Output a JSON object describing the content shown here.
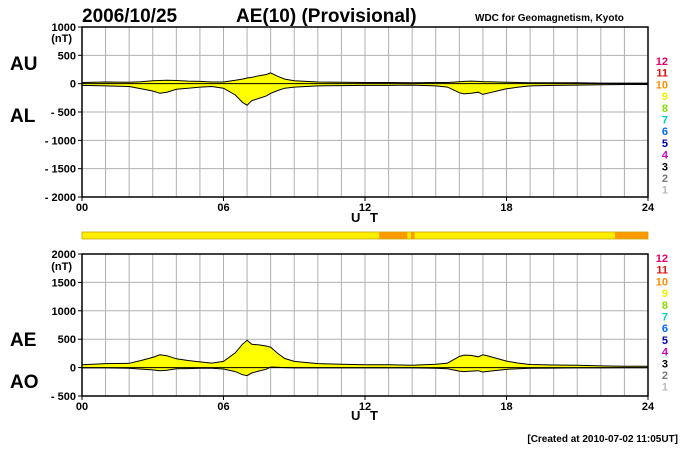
{
  "header": {
    "date": "2006/10/25",
    "title": "AE(10) (Provisional)",
    "credit": "WDC for Geomagnetism, Kyoto"
  },
  "footer": {
    "created": "[Created at 2010-07-02 11:05UT]"
  },
  "colors": {
    "fill": "#ffff00",
    "trace": "#000000",
    "grid": "#b0b0b0",
    "station_bar_normal": "#ffee00",
    "station_bar_reduced": "#ff9900"
  },
  "station_legend": [
    {
      "label": "12",
      "color": "#e0006a"
    },
    {
      "label": "11",
      "color": "#e01010"
    },
    {
      "label": "10",
      "color": "#ff8c00"
    },
    {
      "label": "9",
      "color": "#f0f000"
    },
    {
      "label": "8",
      "color": "#88dd00"
    },
    {
      "label": "7",
      "color": "#00cccc"
    },
    {
      "label": "6",
      "color": "#0066ff"
    },
    {
      "label": "5",
      "color": "#0000aa"
    },
    {
      "label": "4",
      "color": "#cc00cc"
    },
    {
      "label": "3",
      "color": "#000000"
    },
    {
      "label": "2",
      "color": "#777777"
    },
    {
      "label": "1",
      "color": "#bbbbbb"
    }
  ],
  "station_count_bar": {
    "xlim": [
      0,
      24
    ],
    "segments": [
      {
        "start": 0,
        "end": 12.6,
        "stations": 9
      },
      {
        "start": 12.6,
        "end": 13.8,
        "stations": 10
      },
      {
        "start": 13.8,
        "end": 13.95,
        "stations": 9
      },
      {
        "start": 13.95,
        "end": 14.1,
        "stations": 10
      },
      {
        "start": 14.1,
        "end": 22.6,
        "stations": 9
      },
      {
        "start": 22.6,
        "end": 24,
        "stations": 10
      }
    ]
  },
  "chart_data": [
    {
      "type": "area",
      "panel": "AU/AL",
      "title": "AU / AL",
      "series_labels": [
        "AU",
        "AL"
      ],
      "unit_label": "(nT)",
      "xlabel": "U T",
      "xlim": [
        0,
        24
      ],
      "ylim": [
        -2000,
        1000
      ],
      "yticks": [
        1000,
        500,
        0,
        -500,
        -1000,
        -1500,
        -2000
      ],
      "ytick_labels": [
        "1000",
        "500",
        "0",
        "- 500",
        "- 1000",
        "- 1500",
        "- 2000"
      ],
      "xticks": [
        0,
        6,
        12,
        18,
        24
      ],
      "xtick_labels": [
        "00",
        "06",
        "12",
        "18",
        "24"
      ],
      "grid": true,
      "x": [
        0,
        1,
        2,
        2.5,
        3,
        3.3,
        3.6,
        4,
        4.5,
        5,
        5.5,
        6,
        6.5,
        6.8,
        7,
        7.2,
        7.5,
        7.8,
        8,
        8.3,
        8.6,
        9,
        9.5,
        10,
        11,
        12,
        13,
        14,
        15,
        15.5,
        16,
        16.2,
        16.5,
        16.8,
        17,
        17.3,
        17.6,
        18,
        18.5,
        19,
        20,
        21,
        22,
        23,
        24
      ],
      "series": [
        {
          "name": "AU",
          "values": [
            20,
            30,
            25,
            35,
            50,
            55,
            60,
            55,
            45,
            40,
            30,
            30,
            60,
            80,
            100,
            110,
            140,
            160,
            190,
            130,
            80,
            50,
            40,
            30,
            25,
            20,
            20,
            15,
            20,
            20,
            35,
            40,
            45,
            40,
            35,
            35,
            30,
            25,
            20,
            15,
            15,
            15,
            10,
            10,
            10
          ]
        },
        {
          "name": "AL",
          "values": [
            -30,
            -40,
            -50,
            -90,
            -130,
            -170,
            -150,
            -100,
            -80,
            -60,
            -50,
            -80,
            -200,
            -330,
            -380,
            -300,
            -260,
            -220,
            -170,
            -120,
            -80,
            -60,
            -50,
            -40,
            -35,
            -30,
            -30,
            -25,
            -40,
            -60,
            -160,
            -180,
            -170,
            -150,
            -190,
            -160,
            -130,
            -90,
            -60,
            -40,
            -30,
            -25,
            -20,
            -15,
            -15
          ]
        }
      ]
    },
    {
      "type": "area",
      "panel": "AE/AO",
      "title": "AE / AO",
      "series_labels": [
        "AE",
        "AO"
      ],
      "unit_label": "(nT)",
      "xlabel": "U T",
      "xlim": [
        0,
        24
      ],
      "ylim": [
        -500,
        2000
      ],
      "yticks": [
        2000,
        1500,
        1000,
        500,
        0,
        -500
      ],
      "ytick_labels": [
        "2000",
        "1500",
        "1000",
        "500",
        "0",
        "- 500"
      ],
      "xticks": [
        0,
        6,
        12,
        18,
        24
      ],
      "xtick_labels": [
        "00",
        "06",
        "12",
        "18",
        "24"
      ],
      "grid": true,
      "x": [
        0,
        1,
        2,
        2.5,
        3,
        3.3,
        3.6,
        4,
        4.5,
        5,
        5.5,
        6,
        6.5,
        6.8,
        7,
        7.2,
        7.5,
        7.8,
        8,
        8.3,
        8.6,
        9,
        9.5,
        10,
        11,
        12,
        13,
        14,
        15,
        15.5,
        16,
        16.2,
        16.5,
        16.8,
        17,
        17.3,
        17.6,
        18,
        18.5,
        19,
        20,
        21,
        22,
        23,
        24
      ],
      "series": [
        {
          "name": "AE",
          "values": [
            50,
            70,
            75,
            125,
            180,
            225,
            210,
            155,
            125,
            100,
            80,
            110,
            260,
            410,
            480,
            410,
            400,
            380,
            360,
            250,
            160,
            110,
            90,
            70,
            60,
            50,
            50,
            40,
            60,
            80,
            195,
            220,
            215,
            190,
            225,
            195,
            160,
            115,
            80,
            55,
            45,
            40,
            30,
            25,
            25
          ]
        },
        {
          "name": "AO",
          "values": [
            -5,
            -5,
            -12,
            -27,
            -40,
            -57,
            -45,
            -22,
            -17,
            -10,
            -10,
            -25,
            -70,
            -125,
            -140,
            -95,
            -60,
            -30,
            10,
            5,
            0,
            -5,
            -5,
            -5,
            -5,
            -5,
            -5,
            -5,
            -10,
            -20,
            -62,
            -70,
            -62,
            -55,
            -77,
            -62,
            -50,
            -32,
            -20,
            -12,
            -8,
            -5,
            -5,
            -3,
            -3
          ]
        }
      ]
    }
  ]
}
